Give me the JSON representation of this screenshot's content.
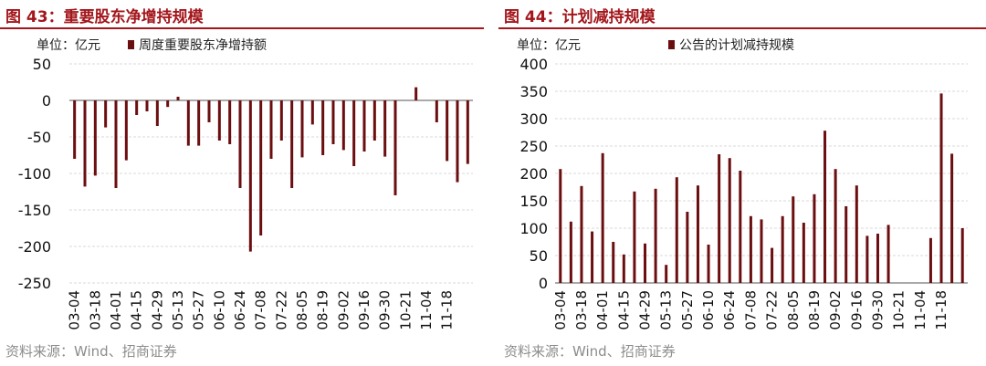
{
  "charts": [
    {
      "title": "图 43：重要股东净增持规模",
      "source": "资料来源：Wind、招商证券",
      "unit_label": "单位：亿元",
      "legend_label": "周度重要股东净增持额",
      "series_color": "#6b0e10"
    },
    {
      "title": "图 44：计划减持规模",
      "source": "资料来源：Wind、招商证券",
      "unit_label": "单位：亿元",
      "legend_label": "公告的计划减持规模",
      "series_color": "#6b0e10"
    }
  ],
  "chart_data": [
    {
      "type": "bar",
      "ylim": [
        -250,
        50
      ],
      "yticks": [
        50,
        0,
        -50,
        -100,
        -150,
        -200,
        -250
      ],
      "grid": true,
      "tick_labels": [
        "03-04",
        "03-18",
        "04-01",
        "04-15",
        "04-29",
        "05-13",
        "05-27",
        "06-10",
        "06-24",
        "07-08",
        "07-22",
        "08-05",
        "08-19",
        "09-02",
        "09-16",
        "09-30",
        "10-21",
        "11-04",
        "11-18"
      ],
      "values": [
        -80,
        -118,
        -103,
        -37,
        -120,
        -82,
        -20,
        -15,
        -35,
        -9,
        5,
        -62,
        -62,
        -30,
        -55,
        -60,
        -120,
        -207,
        -185,
        -80,
        -55,
        -120,
        -78,
        -33,
        -75,
        -60,
        -68,
        -90,
        -70,
        -55,
        -77,
        -130,
        0,
        18,
        0,
        -30,
        -83,
        -112,
        -87
      ]
    },
    {
      "type": "bar",
      "ylim": [
        0,
        400
      ],
      "yticks": [
        400,
        350,
        300,
        250,
        200,
        150,
        100,
        50,
        0
      ],
      "grid": true,
      "tick_labels": [
        "03-04",
        "03-18",
        "04-01",
        "04-15",
        "04-29",
        "05-13",
        "05-27",
        "06-10",
        "06-24",
        "07-08",
        "07-22",
        "08-05",
        "08-19",
        "09-02",
        "09-16",
        "09-30",
        "10-21",
        "11-04",
        "11-18"
      ],
      "values": [
        208,
        112,
        177,
        94,
        237,
        75,
        52,
        167,
        72,
        172,
        33,
        193,
        130,
        178,
        70,
        235,
        228,
        205,
        122,
        116,
        64,
        122,
        158,
        110,
        162,
        278,
        208,
        140,
        178,
        86,
        90,
        106,
        0,
        0,
        0,
        82,
        346,
        236,
        100
      ]
    }
  ]
}
